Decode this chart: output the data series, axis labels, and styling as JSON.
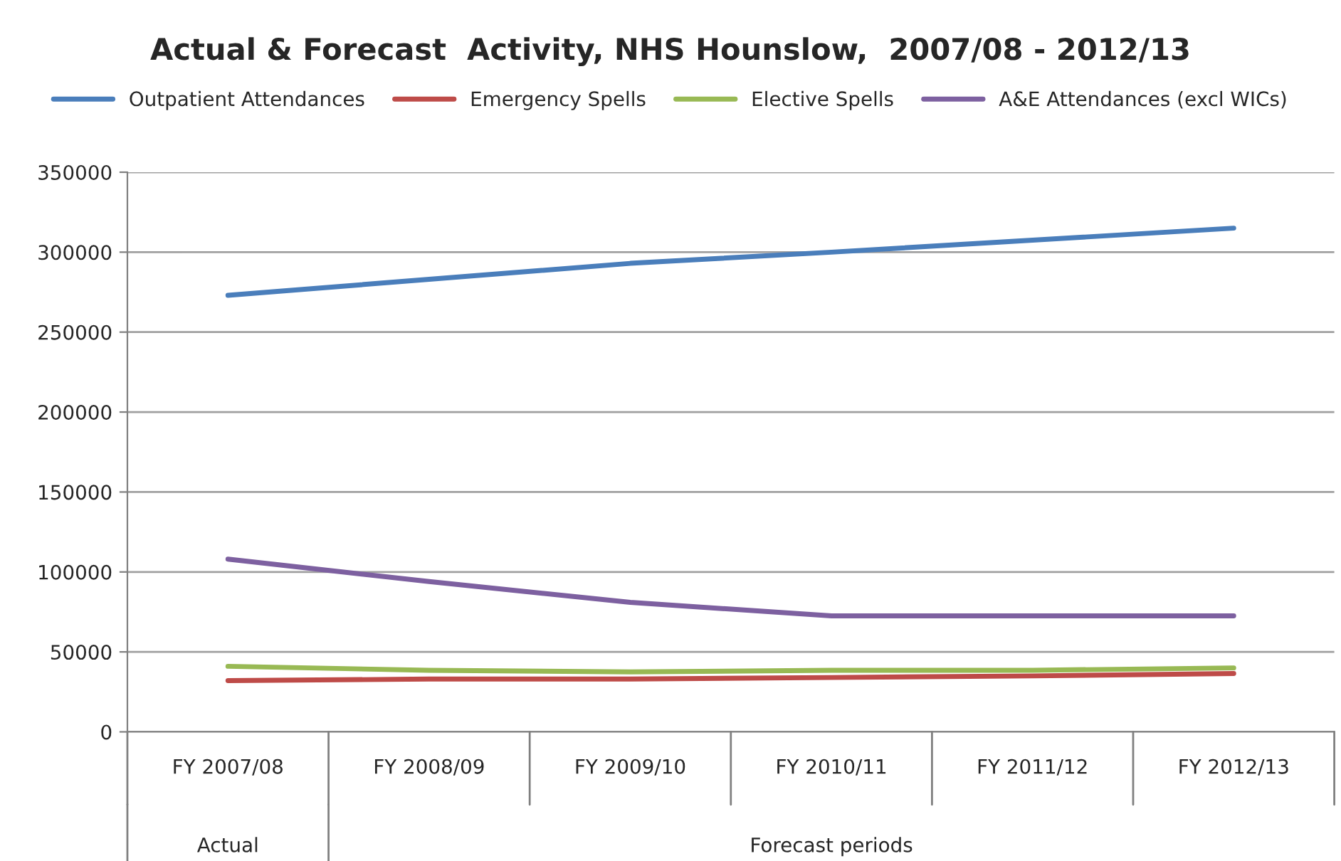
{
  "chart_data": {
    "type": "line",
    "title": "Actual & Forecast  Activity, NHS Hounslow,  2007/08 - 2012/13",
    "categories": [
      "FY 2007/08",
      "FY 2008/09",
      "FY 2009/10",
      "FY 2010/11",
      "FY 2011/12",
      "FY 2012/13"
    ],
    "series": [
      {
        "name": "Outpatient Attendances",
        "color": "#4a7ebb",
        "values": [
          273000,
          283000,
          293000,
          300000,
          307500,
          315000
        ]
      },
      {
        "name": "Emergency Spells",
        "color": "#be4b48",
        "values": [
          32000,
          33000,
          33000,
          34000,
          35000,
          36500
        ]
      },
      {
        "name": "Elective Spells",
        "color": "#98b954",
        "values": [
          41000,
          38500,
          37500,
          38500,
          38500,
          40000
        ]
      },
      {
        "name": "A&E Attendances (excl WICs)",
        "color": "#7d60a0",
        "values": [
          108000,
          94000,
          81000,
          72500,
          72500,
          72500
        ]
      }
    ],
    "ylim": [
      0,
      350000
    ],
    "yticks": [
      0,
      50000,
      100000,
      150000,
      200000,
      250000,
      300000,
      350000
    ],
    "grid": "y",
    "legend": "top",
    "marker": "none",
    "line_style": "solid",
    "annotations": [
      "Actual",
      "Forecast periods"
    ]
  }
}
